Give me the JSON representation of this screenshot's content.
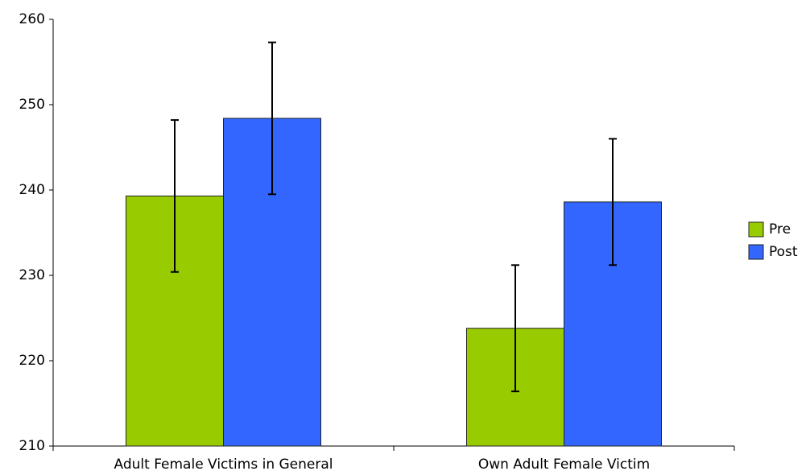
{
  "chart_data": {
    "type": "bar",
    "categories": [
      "Adult Female Victims in General",
      "Own Adult Female Victim"
    ],
    "series": [
      {
        "name": "Pre",
        "color": "#99cc00",
        "values": [
          239.3,
          223.8
        ],
        "errors": [
          8.9,
          7.4
        ]
      },
      {
        "name": "Post",
        "color": "#3366ff",
        "values": [
          248.4,
          238.6
        ],
        "errors": [
          8.9,
          7.4
        ]
      }
    ],
    "ylim": [
      210,
      260
    ],
    "yticks": [
      210,
      220,
      230,
      240,
      250,
      260
    ],
    "grid": false,
    "legend": "right"
  }
}
